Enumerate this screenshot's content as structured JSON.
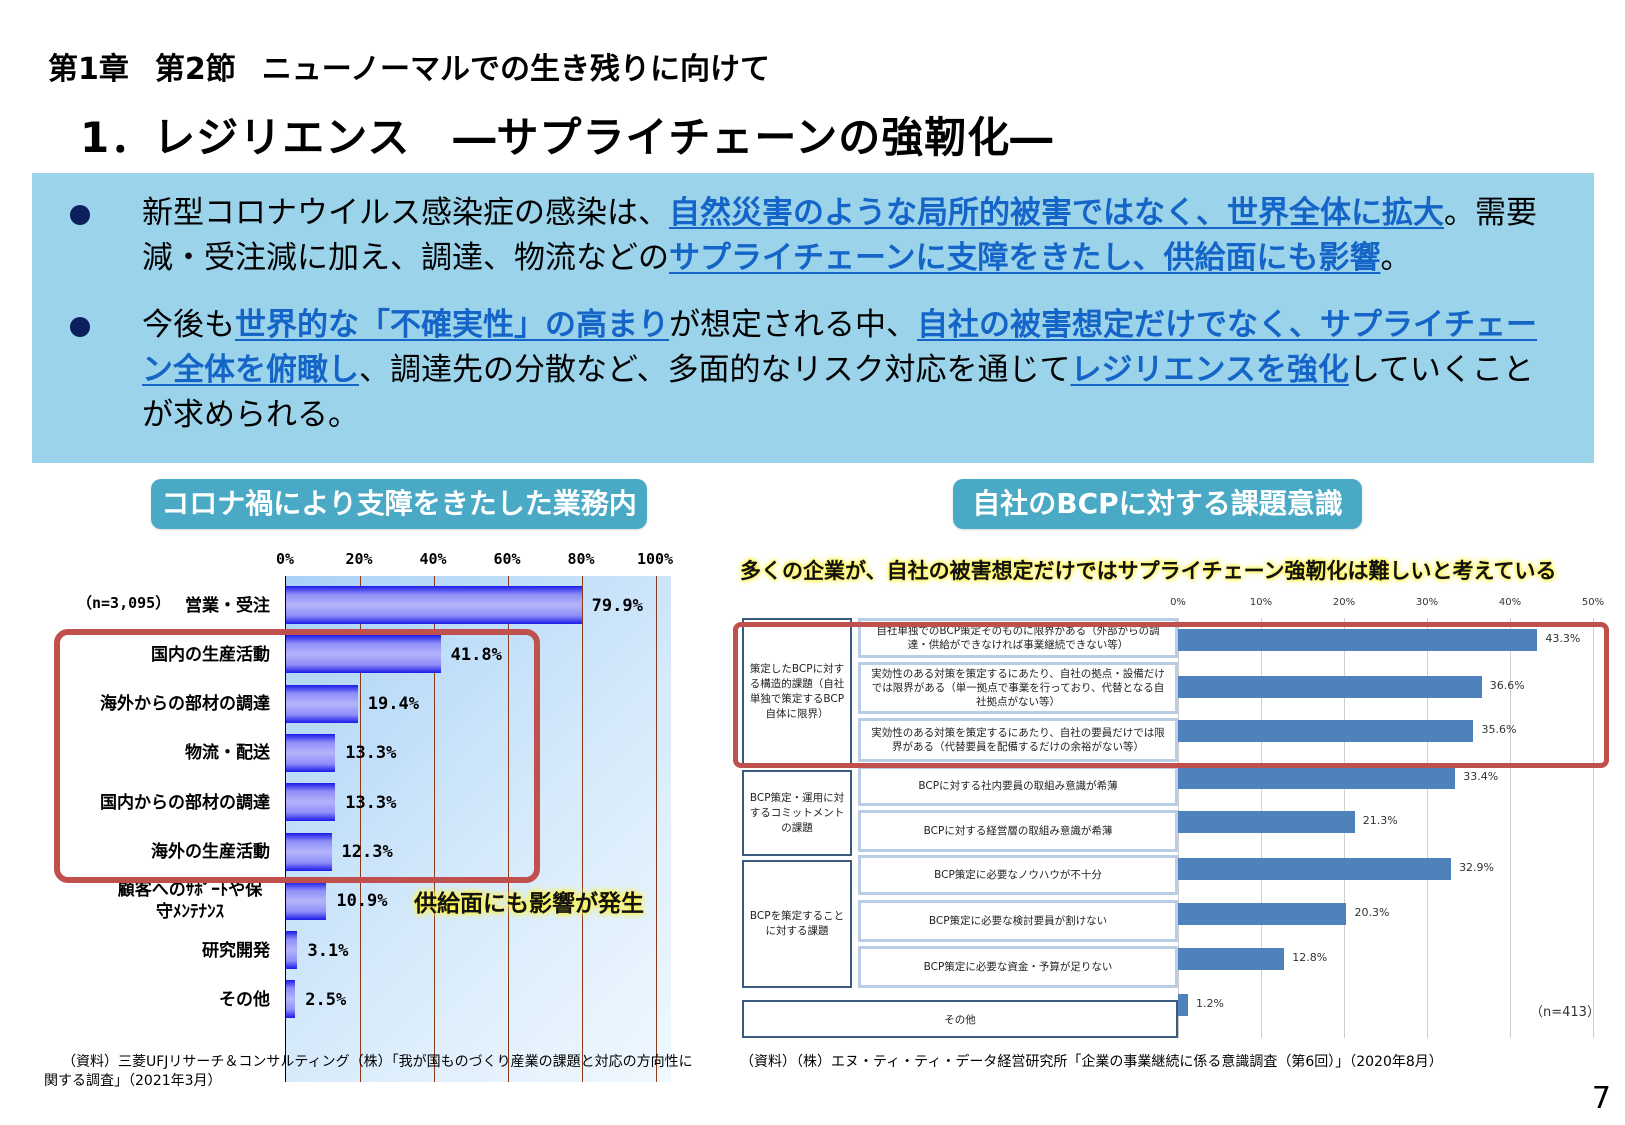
{
  "header": {
    "chapter": "第1章",
    "section": "第2節",
    "section_title": "ニューノーマルでの生き残りに向けて",
    "title": "1．レジリエンス　―サプライチェーンの強靭化―"
  },
  "summary": {
    "bullet1": {
      "p1": "新型コロナウイルス感染症の感染は、",
      "h1": "自然災害のような局所的被害ではなく、世界全体に拡大",
      "p2": "。需要減・受注減に加え、調達、物流などの",
      "h2": "サプライチェーンに支障をきたし、供給面にも影響",
      "p3": "。"
    },
    "bullet2": {
      "p1": "今後も",
      "h1": "世界的な「不確実性」の高まり",
      "p2": "が想定される中、",
      "h2": "自社の被害想定だけでなく、サプライチェーン全体を俯瞰し",
      "p3": "、調達先の分散など、多面的なリスク対応を通じて",
      "h3": "レジリエンスを強化",
      "p4": "していくことが求められる。"
    }
  },
  "left_panel": {
    "pill": "コロナ禍により支障をきたした業務内容",
    "sample": "（n=3,095）",
    "callout": "供給面にも影響が発生",
    "source": "（資料）三菱UFJリサーチ＆コンサルティング（株）「我が国ものづくり産業の課題と対応の方向性に関する調査」（2021年3月）"
  },
  "right_panel": {
    "pill": "自社のBCPに対する課題意識",
    "headline": "多くの企業が、自社の被害想定だけではサプライチェーン強靭化は難しいと考えている",
    "sample": "（n=413）",
    "groups": [
      "策定したBCPに対する構造的課題（自社単独で策定するBCP自体に限界）",
      "BCP策定・運用に対するコミットメントの課題",
      "BCPを策定することに対する課題"
    ],
    "source": "（資料）（株）エヌ・ティ・ティ・データ経営研究所「企業の事業継続に係る意識調査（第6回）」（2020年8月）"
  },
  "page_number": "7",
  "colors": {
    "summary_bg": "#9ad3ea",
    "highlight_text": "#1565c8",
    "pill_bg": "#4aaac6",
    "highlight_border": "#c0504d",
    "right_bar": "#4f81bd",
    "left_bar": "#1a1ae8"
  },
  "chart_data": [
    {
      "type": "bar",
      "orientation": "horizontal",
      "title": "コロナ禍により支障をきたした業務内容",
      "categories": [
        "営業・受注",
        "国内の生産活動",
        "海外からの部材の調達",
        "物流・配送",
        "国内からの部材の調達",
        "海外の生産活動",
        "顧客へのｻﾎﾟｰﾄや保守ﾒﾝﾃﾅﾝｽ",
        "研究開発",
        "その他"
      ],
      "values": [
        79.9,
        41.8,
        19.4,
        13.3,
        13.3,
        12.3,
        10.9,
        3.1,
        2.5
      ],
      "value_labels": [
        "79.9%",
        "41.8%",
        "19.4%",
        "13.3%",
        "13.3%",
        "12.3%",
        "10.9%",
        "3.1%",
        "2.5%"
      ],
      "xticks": [
        "0%",
        "20%",
        "40%",
        "60%",
        "80%",
        "100%"
      ],
      "xlim": [
        0,
        100
      ],
      "grid": true,
      "note": "（n=3,095）",
      "annotation": "供給面にも影響が発生",
      "highlighted_categories": [
        "国内の生産活動",
        "海外からの部材の調達",
        "物流・配送",
        "国内からの部材の調達",
        "海外の生産活動"
      ]
    },
    {
      "type": "bar",
      "orientation": "horizontal",
      "title": "自社のBCPに対する課題意識",
      "subtitle": "多くの企業が、自社の被害想定だけではサプライチェーン強靭化は難しいと考えている",
      "categories": [
        "自社単独でのBCP策定そのものに限界がある（外部からの調達・供給ができなければ事業継続できない等）",
        "実効性のある対策を策定するにあたり、自社の拠点・設備だけでは限界がある（単一拠点で事業を行っており、代替となる自社拠点がない等）",
        "実効性のある対策を策定するにあたり、自社の要員だけでは限界がある（代替要員を配備するだけの余裕がない等）",
        "BCPに対する社内要員の取組み意識が希薄",
        "BCPに対する経営層の取組み意識が希薄",
        "BCP策定に必要なノウハウが不十分",
        "BCP策定に必要な検討要員が割けない",
        "BCP策定に必要な資金・予算が足りない",
        "その他"
      ],
      "groups": [
        {
          "name": "策定したBCPに対する構造的課題（自社単独で策定するBCP自体に限界）",
          "members": [
            0,
            1,
            2
          ]
        },
        {
          "name": "BCP策定・運用に対するコミットメントの課題",
          "members": [
            3,
            4
          ]
        },
        {
          "name": "BCPを策定することに対する課題",
          "members": [
            5,
            6,
            7
          ]
        }
      ],
      "values": [
        43.3,
        36.6,
        35.6,
        33.4,
        21.3,
        32.9,
        20.3,
        12.8,
        1.2
      ],
      "value_labels": [
        "43.3%",
        "36.6%",
        "35.6%",
        "33.4%",
        "21.3%",
        "32.9%",
        "20.3%",
        "12.8%",
        "1.2%"
      ],
      "xticks": [
        "0%",
        "10%",
        "20%",
        "30%",
        "40%",
        "50%"
      ],
      "xlim": [
        0,
        50
      ],
      "grid": true,
      "note": "（n=413）"
    }
  ]
}
